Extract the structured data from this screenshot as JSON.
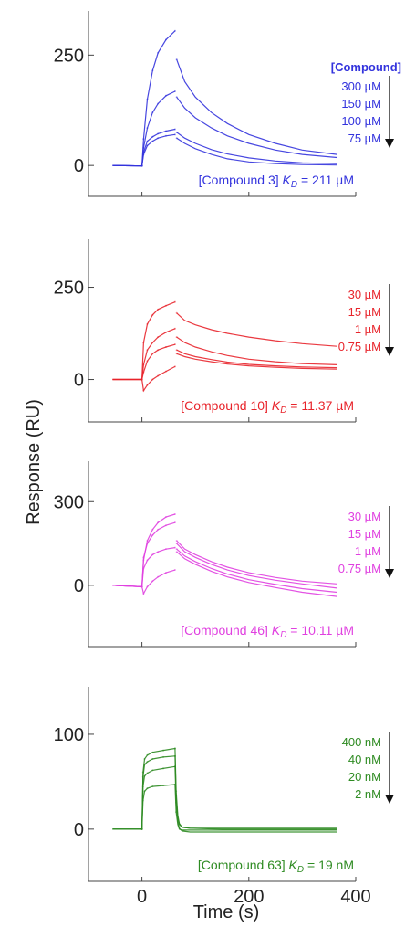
{
  "figure": {
    "ylabel": "Response (RU)",
    "xlabel": "Time (s)"
  },
  "chart_data": [
    {
      "type": "line",
      "panel": "Compound 3",
      "color": "#3333dd",
      "ylim": [
        -70,
        350
      ],
      "yticks": [
        0,
        250
      ],
      "xlim": [
        -100,
        400
      ],
      "legend_header": "[Compound]",
      "conc_labels": [
        "300 µM",
        "150 µM",
        "100 µM",
        "75 µM"
      ],
      "kd_compound": "[Compound 3]",
      "kd_symbol": "K",
      "kd_sub": "D",
      "kd_value": " = 211 µM",
      "series": [
        {
          "x": [
            -55,
            0,
            3,
            10,
            20,
            30,
            45,
            62
          ],
          "y": [
            0,
            -1,
            60,
            150,
            215,
            255,
            285,
            305
          ]
        },
        {
          "x": [
            -55,
            0,
            3,
            10,
            20,
            30,
            45,
            62
          ],
          "y": [
            0,
            -1,
            40,
            85,
            120,
            140,
            158,
            168
          ]
        },
        {
          "x": [
            -55,
            0,
            3,
            10,
            20,
            30,
            45,
            62
          ],
          "y": [
            0,
            -1,
            30,
            55,
            65,
            72,
            78,
            82
          ]
        },
        {
          "x": [
            -55,
            0,
            3,
            10,
            20,
            30,
            45,
            62
          ],
          "y": [
            0,
            -1,
            25,
            45,
            55,
            62,
            67,
            70
          ]
        },
        {
          "x": [
            65,
            80,
            100,
            130,
            160,
            200,
            250,
            300,
            365
          ],
          "y": [
            240,
            190,
            155,
            120,
            95,
            70,
            50,
            35,
            25
          ]
        },
        {
          "x": [
            65,
            80,
            100,
            130,
            160,
            200,
            250,
            300,
            365
          ],
          "y": [
            155,
            130,
            108,
            85,
            67,
            50,
            35,
            25,
            18
          ]
        },
        {
          "x": [
            65,
            80,
            100,
            130,
            160,
            200,
            250,
            300,
            365
          ],
          "y": [
            75,
            62,
            50,
            36,
            26,
            17,
            10,
            6,
            4
          ]
        },
        {
          "x": [
            65,
            80,
            100,
            130,
            160,
            200,
            250,
            300,
            365
          ],
          "y": [
            62,
            50,
            38,
            25,
            15,
            8,
            4,
            2,
            1
          ]
        }
      ]
    },
    {
      "type": "line",
      "panel": "Compound 10",
      "color": "#e8242b",
      "ylim": [
        -115,
        380
      ],
      "yticks": [
        0,
        250
      ],
      "xlim": [
        -100,
        400
      ],
      "conc_labels": [
        "30 µM",
        "15 µM",
        "1 µM",
        "0.75 µM"
      ],
      "kd_compound": "[Compound 10]",
      "kd_symbol": "K",
      "kd_sub": "D",
      "kd_value": " = 11.37 µM",
      "series": [
        {
          "x": [
            -55,
            0,
            3,
            10,
            20,
            30,
            45,
            62
          ],
          "y": [
            0,
            0,
            100,
            150,
            175,
            190,
            200,
            210
          ]
        },
        {
          "x": [
            -55,
            0,
            3,
            10,
            20,
            30,
            45,
            62
          ],
          "y": [
            0,
            0,
            40,
            80,
            100,
            115,
            128,
            138
          ]
        },
        {
          "x": [
            -55,
            0,
            3,
            10,
            20,
            30,
            45,
            62
          ],
          "y": [
            0,
            0,
            20,
            50,
            70,
            80,
            88,
            95
          ]
        },
        {
          "x": [
            -55,
            0,
            3,
            10,
            20,
            30,
            45,
            62
          ],
          "y": [
            0,
            0,
            -30,
            -15,
            0,
            10,
            22,
            35
          ]
        },
        {
          "x": [
            65,
            80,
            100,
            130,
            160,
            200,
            250,
            300,
            365
          ],
          "y": [
            180,
            160,
            148,
            135,
            125,
            115,
            105,
            97,
            90
          ]
        },
        {
          "x": [
            65,
            80,
            100,
            130,
            160,
            200,
            250,
            300,
            365
          ],
          "y": [
            115,
            100,
            88,
            75,
            65,
            55,
            48,
            43,
            40
          ]
        },
        {
          "x": [
            65,
            80,
            100,
            130,
            160,
            200,
            250,
            300,
            365
          ],
          "y": [
            80,
            70,
            62,
            54,
            47,
            41,
            37,
            34,
            32
          ]
        },
        {
          "x": [
            65,
            80,
            100,
            130,
            160,
            200,
            250,
            300,
            365
          ],
          "y": [
            70,
            62,
            55,
            48,
            42,
            37,
            33,
            30,
            28
          ]
        }
      ]
    },
    {
      "type": "line",
      "panel": "Compound 46",
      "color": "#e040e0",
      "ylim": [
        -220,
        445
      ],
      "yticks": [
        0,
        300
      ],
      "xlim": [
        -100,
        400
      ],
      "conc_labels": [
        "30 µM",
        "15 µM",
        "1 µM",
        "0.75 µM"
      ],
      "kd_compound": "[Compound 46]",
      "kd_symbol": "K",
      "kd_sub": "D",
      "kd_value": " = 10.11 µM",
      "series": [
        {
          "x": [
            -55,
            0,
            3,
            10,
            20,
            30,
            45,
            62
          ],
          "y": [
            0,
            -5,
            90,
            160,
            200,
            225,
            245,
            255
          ]
        },
        {
          "x": [
            -55,
            0,
            3,
            10,
            20,
            30,
            45,
            62
          ],
          "y": [
            0,
            -5,
            100,
            150,
            180,
            200,
            215,
            225
          ]
        },
        {
          "x": [
            -55,
            0,
            3,
            10,
            20,
            30,
            45,
            62
          ],
          "y": [
            0,
            -5,
            60,
            90,
            110,
            120,
            130,
            135
          ]
        },
        {
          "x": [
            -55,
            0,
            3,
            10,
            20,
            30,
            45,
            62
          ],
          "y": [
            0,
            -5,
            -30,
            -5,
            15,
            30,
            45,
            55
          ]
        },
        {
          "x": [
            65,
            80,
            100,
            130,
            160,
            200,
            250,
            300,
            365
          ],
          "y": [
            160,
            130,
            110,
            85,
            65,
            45,
            28,
            15,
            5
          ]
        },
        {
          "x": [
            65,
            80,
            100,
            130,
            160,
            200,
            250,
            300,
            365
          ],
          "y": [
            150,
            120,
            100,
            75,
            55,
            35,
            18,
            5,
            -10
          ]
        },
        {
          "x": [
            65,
            80,
            100,
            130,
            160,
            200,
            250,
            300,
            365
          ],
          "y": [
            130,
            105,
            85,
            60,
            40,
            20,
            3,
            -12,
            -25
          ]
        },
        {
          "x": [
            65,
            80,
            100,
            130,
            160,
            200,
            250,
            300,
            365
          ],
          "y": [
            120,
            95,
            75,
            50,
            30,
            10,
            -8,
            -25,
            -40
          ]
        }
      ]
    },
    {
      "type": "line",
      "panel": "Compound 63",
      "color": "#2e8b22",
      "ylim": [
        -55,
        150
      ],
      "yticks": [
        0,
        100
      ],
      "xlim": [
        -100,
        400
      ],
      "xticks": [
        0,
        200,
        400
      ],
      "conc_labels": [
        "400 nM",
        "40 nM",
        "20 nM",
        "2 nM"
      ],
      "kd_compound": "[Compound 63]",
      "kd_symbol": "K",
      "kd_sub": "D",
      "kd_value": " = 19 nM",
      "series": [
        {
          "x": [
            -55,
            0,
            2,
            5,
            10,
            20,
            40,
            62
          ],
          "y": [
            0,
            0,
            60,
            74,
            78,
            81,
            83,
            85
          ]
        },
        {
          "x": [
            -55,
            0,
            2,
            5,
            10,
            20,
            40,
            62
          ],
          "y": [
            0,
            0,
            55,
            68,
            71,
            74,
            76,
            77
          ]
        },
        {
          "x": [
            -55,
            0,
            2,
            5,
            10,
            20,
            40,
            62
          ],
          "y": [
            0,
            0,
            45,
            56,
            59,
            62,
            64,
            66
          ]
        },
        {
          "x": [
            -55,
            0,
            2,
            5,
            10,
            20,
            40,
            62
          ],
          "y": [
            0,
            0,
            30,
            40,
            43,
            45,
            46,
            47
          ]
        },
        {
          "x": [
            62,
            64,
            67,
            70,
            75,
            90,
            150,
            250,
            365
          ],
          "y": [
            85,
            40,
            15,
            6,
            2,
            1,
            0,
            0,
            0
          ]
        },
        {
          "x": [
            62,
            64,
            67,
            70,
            75,
            90,
            150,
            250,
            365
          ],
          "y": [
            77,
            35,
            12,
            5,
            2,
            1,
            1,
            1,
            1
          ]
        },
        {
          "x": [
            62,
            64,
            67,
            70,
            75,
            90,
            150,
            250,
            365
          ],
          "y": [
            66,
            28,
            8,
            1,
            -2,
            -3,
            -3,
            -3,
            -3
          ]
        },
        {
          "x": [
            62,
            64,
            67,
            70,
            75,
            90,
            150,
            250,
            365
          ],
          "y": [
            47,
            18,
            5,
            0,
            -1,
            -1,
            -1,
            -1,
            -1
          ]
        }
      ]
    }
  ]
}
